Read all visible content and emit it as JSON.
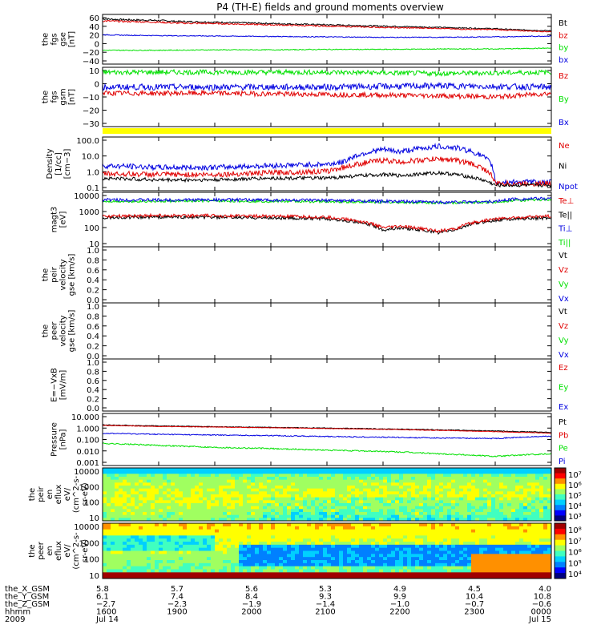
{
  "title": "P4 (TH-E) fields and ground moments overview",
  "colors": {
    "black": "#000000",
    "red": "#e00000",
    "green": "#00e000",
    "blue": "#0000e0",
    "yellow": "#ffff00"
  },
  "chart_data": [
    {
      "type": "line",
      "name": "panel-fgs-gse",
      "ylabel": [
        "the",
        "fgs",
        "gse",
        "[nT]"
      ],
      "yticks": [
        "60",
        "40",
        "20",
        "0",
        "−20",
        "−40"
      ],
      "ylim": [
        -50,
        65
      ],
      "legend": [
        {
          "text": "Bt",
          "color": "black"
        },
        {
          "text": "bz",
          "color": "red"
        },
        {
          "text": "by",
          "color": "green"
        },
        {
          "text": "bx",
          "color": "blue"
        }
      ],
      "series": [
        {
          "key": "Bt",
          "color": "black",
          "x": [
            1600,
            1630,
            1700,
            1730,
            1800,
            1830,
            1900,
            1930,
            2000,
            2030,
            2100,
            2130,
            2200,
            2230,
            2300,
            2330,
            2400
          ],
          "y": [
            55,
            53,
            51,
            49,
            47,
            46,
            44,
            43,
            41,
            40,
            38,
            37,
            35,
            34,
            32,
            30,
            27
          ],
          "noise": 0.8
        },
        {
          "key": "Bz",
          "color": "red",
          "x": [
            1600,
            1630,
            1700,
            1730,
            1800,
            1830,
            1900,
            1930,
            2000,
            2030,
            2100,
            2130,
            2200,
            2230,
            2300,
            2330,
            2400
          ],
          "y": [
            50,
            49,
            47,
            45,
            44,
            43,
            41,
            40,
            38,
            37,
            35,
            34,
            33,
            31,
            30,
            28,
            25
          ],
          "noise": 0.8
        },
        {
          "key": "Bx",
          "color": "blue",
          "x": [
            1600,
            1630,
            1700,
            1800,
            1900,
            2000,
            2100,
            2200,
            2300,
            2400
          ],
          "y": [
            18,
            17,
            16,
            15,
            14,
            13,
            12,
            12,
            13,
            15
          ],
          "noise": 1.0
        },
        {
          "key": "By",
          "color": "green",
          "x": [
            1600,
            1700,
            1800,
            1900,
            2000,
            2100,
            2200,
            2300,
            2400
          ],
          "y": [
            -18,
            -18,
            -17,
            -17,
            -16,
            -16,
            -15,
            -15,
            -13
          ],
          "noise": 1.0
        }
      ]
    },
    {
      "type": "line",
      "name": "panel-fgs-gsm",
      "ylabel": [
        "the",
        "fgs",
        "gsm",
        "[nT]"
      ],
      "yticks": [
        "10",
        "0",
        "−10",
        "−20",
        "−30"
      ],
      "ylim": [
        -35,
        13
      ],
      "legend": [
        {
          "text": "Bz",
          "color": "red"
        },
        {
          "text": "By",
          "color": "green"
        },
        {
          "text": "Bx",
          "color": "blue"
        }
      ],
      "series": [
        {
          "key": "By",
          "color": "green",
          "x": [
            1600,
            1800,
            2000,
            2200,
            2400
          ],
          "y": [
            9,
            9,
            9,
            8,
            9
          ],
          "noise": 2.0
        },
        {
          "key": "Bx",
          "color": "blue",
          "x": [
            1600,
            1800,
            2000,
            2200,
            2400
          ],
          "y": [
            -3,
            -3,
            -3,
            -2,
            -3
          ],
          "noise": 2.5
        },
        {
          "key": "Bz",
          "color": "red",
          "x": [
            1600,
            1800,
            2000,
            2200,
            2300,
            2400
          ],
          "y": [
            -8,
            -8,
            -9,
            -10,
            -11,
            -8
          ],
          "noise": 2.0
        }
      ]
    },
    {
      "type": "line",
      "name": "panel-density",
      "scale": "log",
      "ylabel": [
        "Density",
        "[1/cc]",
        "[cm−3]"
      ],
      "yticks": [
        "100.0",
        "10.0",
        "1.0",
        "0.1"
      ],
      "ylim": [
        0.1,
        100
      ],
      "legend": [
        {
          "text": "Ne",
          "color": "red"
        },
        {
          "text": "Ni",
          "color": "black"
        },
        {
          "text": "Npot",
          "color": "blue"
        }
      ],
      "series": [
        {
          "key": "Npot",
          "color": "blue",
          "x": [
            1600,
            1700,
            1800,
            1900,
            2000,
            2030,
            2100,
            2130,
            2200,
            2230,
            2300,
            2330,
            2400
          ],
          "y": [
            2.5,
            2.0,
            2.0,
            2.5,
            3.0,
            4.0,
            20,
            15,
            30,
            25,
            0.3,
            0.3,
            0.3
          ],
          "noise": 0.15
        },
        {
          "key": "Ne",
          "color": "red",
          "x": [
            1600,
            1700,
            1800,
            1900,
            2000,
            2030,
            2100,
            2130,
            2200,
            2230,
            2300,
            2330,
            2400
          ],
          "y": [
            0.9,
            0.8,
            0.8,
            1.0,
            1.2,
            2.0,
            5.0,
            4.0,
            6.0,
            5.0,
            0.25,
            0.25,
            0.25
          ],
          "noise": 0.15
        },
        {
          "key": "Ni",
          "color": "black",
          "x": [
            1600,
            1700,
            1800,
            1900,
            2000,
            2030,
            2100,
            2130,
            2200,
            2230,
            2300,
            2330,
            2400
          ],
          "y": [
            0.5,
            0.4,
            0.4,
            0.5,
            0.5,
            0.6,
            0.8,
            0.7,
            1.0,
            0.8,
            0.2,
            0.2,
            0.2
          ],
          "noise": 0.1
        }
      ]
    },
    {
      "type": "line",
      "name": "panel-temperature",
      "scale": "log",
      "ylabel": [
        "magt3",
        "[eV]"
      ],
      "yticks": [
        "10000",
        "1000",
        "100",
        "10"
      ],
      "ylim": [
        5,
        15000
      ],
      "legend": [
        {
          "text": "Te⊥",
          "color": "red"
        },
        {
          "text": "Te||",
          "color": "black"
        },
        {
          "text": "Ti⊥",
          "color": "blue"
        },
        {
          "text": "Ti||",
          "color": "green"
        }
      ],
      "series": [
        {
          "key": "Ti-par",
          "color": "green",
          "x": [
            1600,
            1700,
            1800,
            1900,
            2000,
            2100,
            2200,
            2300,
            2330,
            2400
          ],
          "y": [
            4000,
            4000,
            4200,
            4000,
            3800,
            3500,
            3200,
            3500,
            4500,
            5000
          ],
          "noise": 0.08
        },
        {
          "key": "Ti-perp",
          "color": "blue",
          "x": [
            1600,
            1700,
            1800,
            1900,
            2000,
            2100,
            2200,
            2300,
            2330,
            2400
          ],
          "y": [
            5000,
            4800,
            5000,
            4800,
            4500,
            4000,
            3500,
            3800,
            5500,
            6000
          ],
          "noise": 0.1
        },
        {
          "key": "Te-par",
          "color": "black",
          "x": [
            1600,
            1700,
            1800,
            1900,
            2000,
            2030,
            2100,
            2130,
            2200,
            2230,
            2300,
            2330,
            2400
          ],
          "y": [
            350,
            400,
            380,
            350,
            300,
            250,
            60,
            80,
            40,
            60,
            250,
            300,
            350
          ],
          "noise": 0.1
        },
        {
          "key": "Te-perp",
          "color": "red",
          "x": [
            1600,
            1700,
            1800,
            1900,
            2000,
            2030,
            2100,
            2130,
            2200,
            2230,
            2300,
            2330,
            2400
          ],
          "y": [
            450,
            500,
            480,
            450,
            380,
            300,
            80,
            100,
            50,
            70,
            300,
            350,
            450
          ],
          "noise": 0.1
        }
      ]
    },
    {
      "type": "line",
      "name": "panel-peir-velocity",
      "ylabel": [
        "the",
        "peir",
        "velocity",
        "gse [km/s]"
      ],
      "yticks": [
        "1.0",
        "0.8",
        "0.6",
        "0.4",
        "0.2",
        "0.0"
      ],
      "ylim": [
        0,
        1
      ],
      "legend": [
        {
          "text": "Vt",
          "color": "black"
        },
        {
          "text": "Vz",
          "color": "red"
        },
        {
          "text": "Vy",
          "color": "green"
        },
        {
          "text": "Vx",
          "color": "blue"
        }
      ],
      "series": []
    },
    {
      "type": "line",
      "name": "panel-peer-velocity",
      "ylabel": [
        "the",
        "peer",
        "velocity",
        "gse [km/s]"
      ],
      "yticks": [
        "1.0",
        "0.8",
        "0.6",
        "0.4",
        "0.2",
        "0.0"
      ],
      "ylim": [
        0,
        1
      ],
      "legend": [
        {
          "text": "Vt",
          "color": "black"
        },
        {
          "text": "Vz",
          "color": "red"
        },
        {
          "text": "Vy",
          "color": "green"
        },
        {
          "text": "Vx",
          "color": "blue"
        }
      ],
      "series": []
    },
    {
      "type": "line",
      "name": "panel-e-vxb",
      "ylabel": [
        "E=−VxB",
        "[mV/m]"
      ],
      "yticks": [
        "1.0",
        "0.8",
        "0.6",
        "0.4",
        "0.2",
        "0.0"
      ],
      "ylim": [
        0,
        1
      ],
      "legend": [
        {
          "text": "Ez",
          "color": "red"
        },
        {
          "text": "Ey",
          "color": "green"
        },
        {
          "text": "Ex",
          "color": "blue"
        }
      ],
      "series": []
    },
    {
      "type": "line",
      "name": "panel-pressure",
      "scale": "log",
      "ylabel": [
        "Pressure",
        "[nPa]"
      ],
      "yticks": [
        "10.000",
        "1.000",
        "0.100",
        "0.010",
        "0.001"
      ],
      "ylim": [
        0.001,
        10
      ],
      "legend": [
        {
          "text": "Pt",
          "color": "black"
        },
        {
          "text": "Pb",
          "color": "red"
        },
        {
          "text": "Pe",
          "color": "green"
        },
        {
          "text": "Pi",
          "color": "blue"
        }
      ],
      "series": [
        {
          "key": "Pt",
          "color": "black",
          "x": [
            1600,
            1700,
            1800,
            1900,
            2000,
            2100,
            2200,
            2300,
            2400
          ],
          "y": [
            1.3,
            1.1,
            0.95,
            0.85,
            0.75,
            0.65,
            0.55,
            0.45,
            0.35
          ],
          "noise": 0.03
        },
        {
          "key": "Pb",
          "color": "red",
          "x": [
            1600,
            1700,
            1800,
            1900,
            2000,
            2100,
            2200,
            2300,
            2400
          ],
          "y": [
            1.2,
            1.0,
            0.9,
            0.8,
            0.7,
            0.6,
            0.5,
            0.4,
            0.3
          ],
          "noise": 0.02
        },
        {
          "key": "Pi",
          "color": "blue",
          "x": [
            1600,
            1700,
            1800,
            1900,
            2000,
            2100,
            2200,
            2300,
            2400
          ],
          "y": [
            0.3,
            0.25,
            0.22,
            0.2,
            0.17,
            0.15,
            0.13,
            0.12,
            0.18
          ],
          "noise": 0.04
        },
        {
          "key": "Pe",
          "color": "green",
          "x": [
            1600,
            1700,
            1800,
            1900,
            2000,
            2100,
            2200,
            2300,
            2400
          ],
          "y": [
            0.05,
            0.035,
            0.025,
            0.02,
            0.015,
            0.012,
            0.008,
            0.005,
            0.008
          ],
          "noise": 0.05
        }
      ]
    },
    {
      "type": "heatmap",
      "name": "panel-peir-spectrogram",
      "ylabel": [
        "the",
        "peir",
        "en",
        "eflux",
        "eV/",
        "(cm^2-s-",
        "sr-eV)"
      ],
      "yticks": [
        "10000",
        "1000",
        "100",
        "10"
      ],
      "colorbar": [
        "10⁷",
        "10⁶",
        "10⁵",
        "10⁴",
        "10³"
      ]
    },
    {
      "type": "heatmap",
      "name": "panel-peer-spectrogram",
      "ylabel": [
        "the",
        "peer",
        "en",
        "eflux",
        "eV/",
        "(cm^2-s-",
        "sr-eV)"
      ],
      "yticks": [
        "10000",
        "1000",
        "100",
        "10"
      ],
      "colorbar": [
        "10⁸",
        "10⁷",
        "10⁶",
        "10⁵",
        "10⁴"
      ]
    }
  ],
  "xaxis": {
    "labels": [
      "the_X_GSM",
      "the_Y_GSM",
      "the_Z_GSM",
      "hhmm",
      "2009"
    ],
    "columns": [
      [
        "5.8",
        "6.1",
        "−2.7",
        "1600",
        "Jul 14"
      ],
      [
        "5.7",
        "7.4",
        "−2.3",
        "1900",
        ""
      ],
      [
        "5.6",
        "8.4",
        "−1.9",
        "2000",
        ""
      ],
      [
        "5.3",
        "9.3",
        "−1.4",
        "2100",
        ""
      ],
      [
        "4.9",
        "9.9",
        "−1.0",
        "2200",
        ""
      ],
      [
        "4.5",
        "10.4",
        "−0.7",
        "2300",
        ""
      ],
      [
        "4.0",
        "10.8",
        "−0.6",
        "0000",
        "Jul 15"
      ]
    ]
  }
}
